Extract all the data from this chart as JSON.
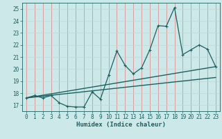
{
  "title": "",
  "xlabel": "Humidex (Indice chaleur)",
  "ylabel": "",
  "bg_color": "#cce8e8",
  "line_color": "#1a6060",
  "grid_color_v": "#e08080",
  "grid_color_h": "#c0d8d8",
  "xlim": [
    -0.5,
    23.5
  ],
  "ylim": [
    16.5,
    25.5
  ],
  "xticks": [
    0,
    1,
    2,
    3,
    4,
    5,
    6,
    7,
    8,
    9,
    10,
    11,
    12,
    13,
    14,
    15,
    16,
    17,
    18,
    19,
    20,
    21,
    22,
    23
  ],
  "yticks": [
    17,
    18,
    19,
    20,
    21,
    22,
    23,
    24,
    25
  ],
  "data_line": {
    "x": [
      0,
      1,
      2,
      3,
      4,
      5,
      6,
      7,
      8,
      9,
      10,
      11,
      12,
      13,
      14,
      15,
      16,
      17,
      18,
      19,
      20,
      21,
      22,
      23
    ],
    "y": [
      17.6,
      17.8,
      17.6,
      17.8,
      17.2,
      16.9,
      16.85,
      16.85,
      18.1,
      17.5,
      19.5,
      21.5,
      20.3,
      19.6,
      20.1,
      21.6,
      23.6,
      23.55,
      25.1,
      21.2,
      21.6,
      22.0,
      21.65,
      20.2
    ]
  },
  "trend_line1": {
    "x": [
      0,
      23
    ],
    "y": [
      17.6,
      20.2
    ]
  },
  "trend_line2": {
    "x": [
      0,
      23
    ],
    "y": [
      17.6,
      19.3
    ]
  }
}
